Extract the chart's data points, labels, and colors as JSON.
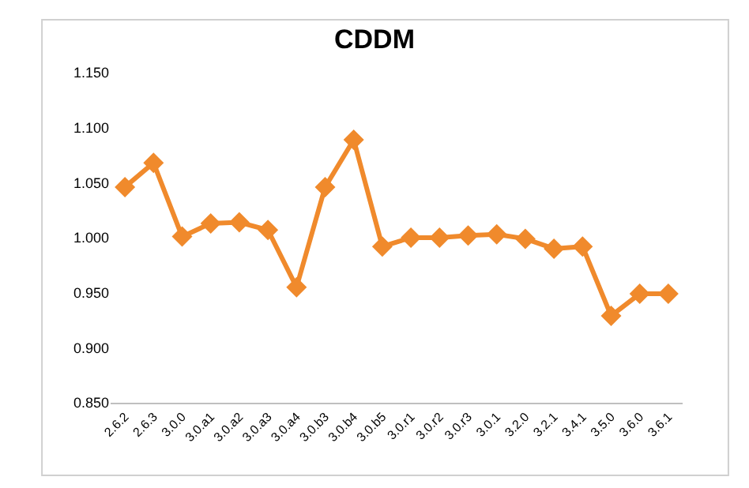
{
  "chart_data": {
    "type": "line",
    "title": "CDDM",
    "categories": [
      "2.6.2",
      "2.6.3",
      "3.0.0",
      "3.0.a1",
      "3.0.a2",
      "3.0.a3",
      "3.0.a4",
      "3.0.b3",
      "3.0.b4",
      "3.0.b5",
      "3.0.r1",
      "3.0.r2",
      "3.0.r3",
      "3.0.1",
      "3.2.0",
      "3.2.1",
      "3.4.1",
      "3.5.0",
      "3.6.0",
      "3.6.1"
    ],
    "series": [
      {
        "color": "#f08a2c",
        "values": [
          1.046,
          1.068,
          1.001,
          1.013,
          1.014,
          1.007,
          0.955,
          1.046,
          1.089,
          0.992,
          1.0,
          1.0,
          1.002,
          1.003,
          0.999,
          0.99,
          0.992,
          0.929,
          0.949,
          0.949
        ]
      }
    ],
    "ylim": [
      0.85,
      1.15
    ],
    "yticks": [
      {
        "value": 0.85,
        "label": "0.850"
      },
      {
        "value": 0.9,
        "label": "0.900"
      },
      {
        "value": 0.95,
        "label": "0.950"
      },
      {
        "value": 1.0,
        "label": "1.000"
      },
      {
        "value": 1.05,
        "label": "1.050"
      },
      {
        "value": 1.1,
        "label": "1.100"
      },
      {
        "value": 1.15,
        "label": "1.150"
      }
    ],
    "grid": false,
    "marker": "diamond",
    "line_style": "solid"
  }
}
